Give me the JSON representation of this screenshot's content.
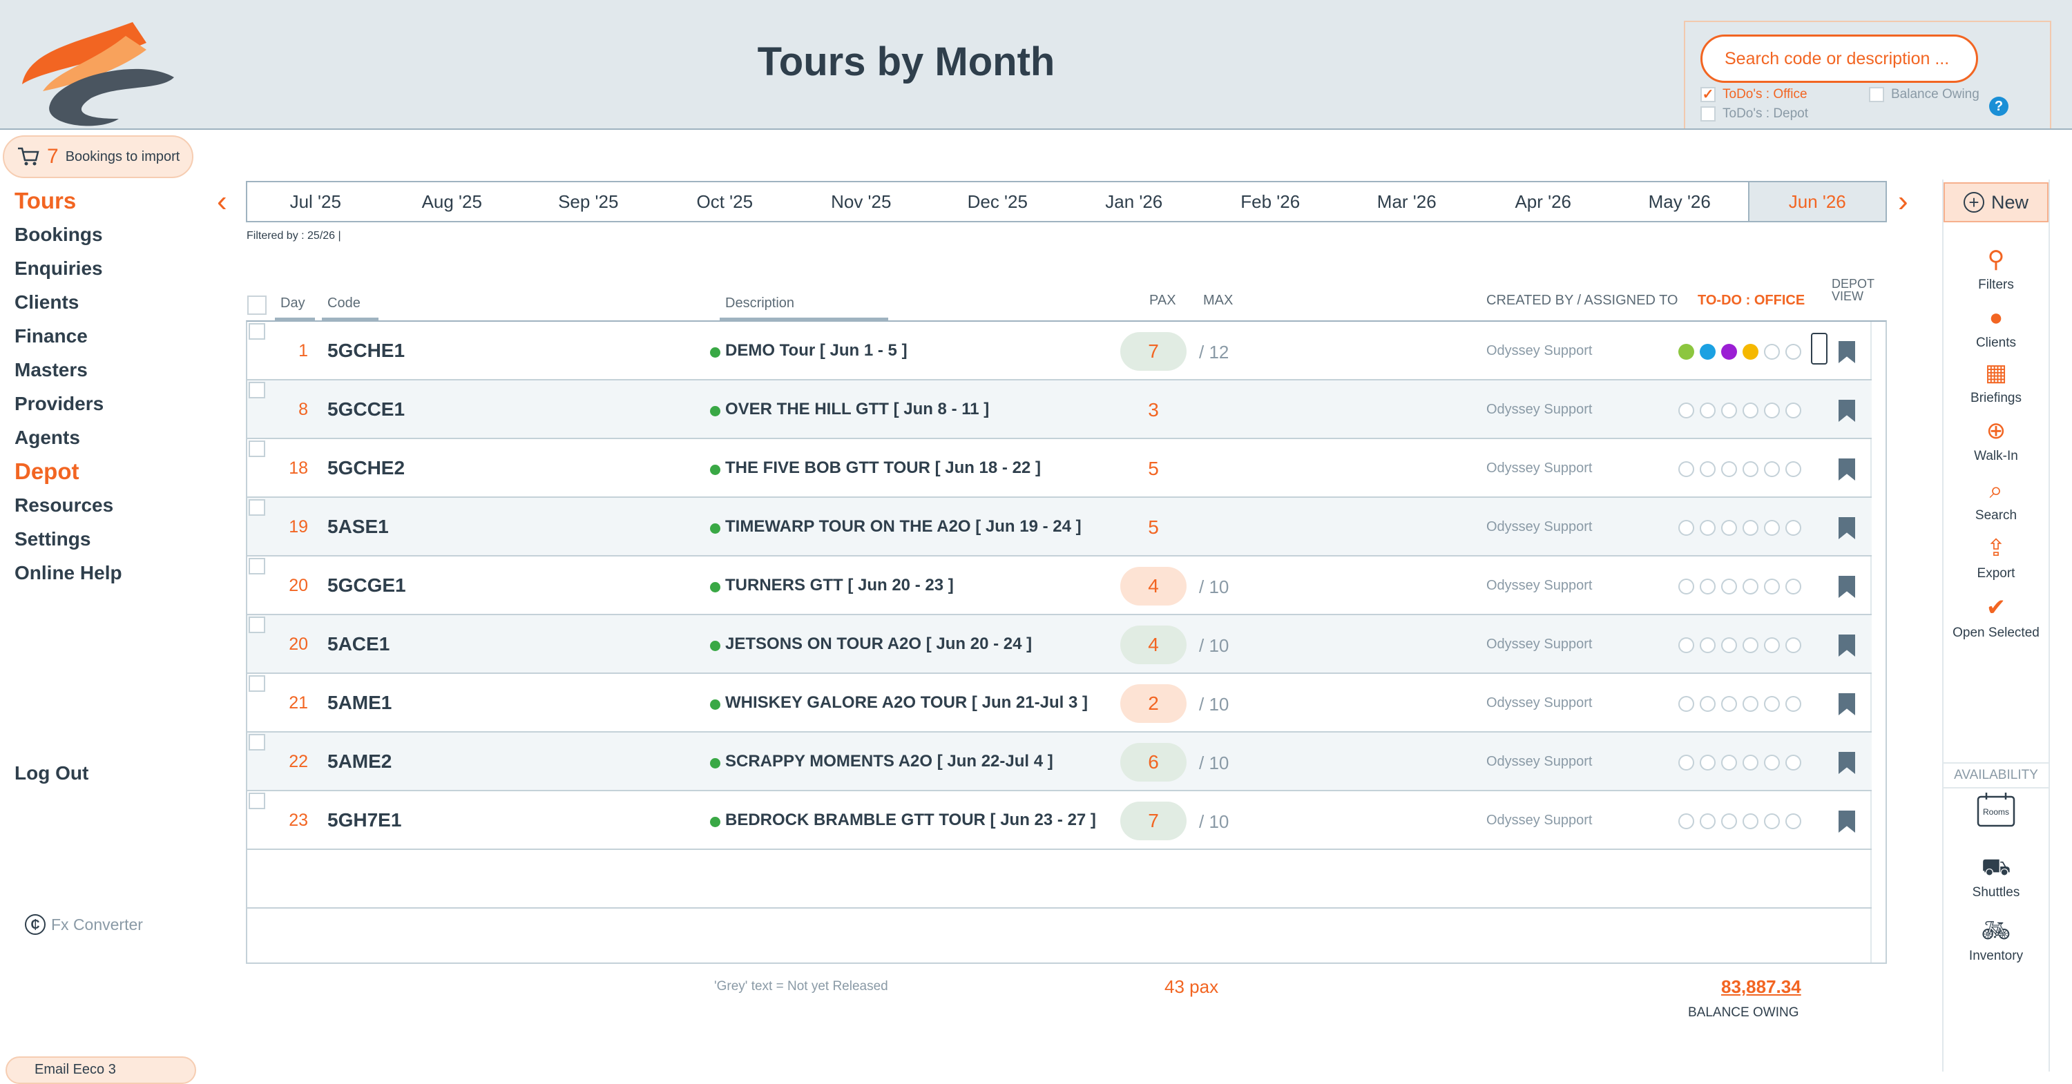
{
  "header": {
    "title": "Tours by Month",
    "search": {
      "placeholder": "Search code or description ...",
      "todo_office": "ToDo's : Office",
      "todo_depot": "ToDo's : Depot",
      "balance_owing": "Balance Owing",
      "help": "?"
    }
  },
  "import": {
    "count": "7",
    "label": "Bookings to import"
  },
  "nav": {
    "items": [
      "Tours",
      "Bookings",
      "Enquiries",
      "Clients",
      "Finance",
      "Masters",
      "Providers",
      "Agents",
      "Depot",
      "Resources",
      "Settings",
      "Online Help"
    ],
    "logout": "Log Out",
    "fx_converter": "Fx Converter",
    "email_label": "Email Eeco 3"
  },
  "months": [
    "Jul '25",
    "Aug '25",
    "Sep '25",
    "Oct '25",
    "Nov '25",
    "Dec '25",
    "Jan '26",
    "Feb '26",
    "Mar '26",
    "Apr '26",
    "May '26",
    "Jun '26"
  ],
  "filter_text": "Filtered by : 25/26 |",
  "columns": {
    "day": "Day",
    "code": "Code",
    "description": "Description",
    "pax": "PAX",
    "max": "MAX",
    "created": "CREATED BY / ASSIGNED TO",
    "todo": "TO-DO : OFFICE",
    "depot": "DEPOT VIEW"
  },
  "rows": [
    {
      "day": "1",
      "code": "5GCHE1",
      "description": "DEMO Tour  [ Jun 1 - 5 ]",
      "pax": "7",
      "max": "/ 12",
      "assigned": "Odyssey Support"
    },
    {
      "day": "8",
      "code": "5GCCE1",
      "description": "OVER THE HILL GTT  [ Jun 8 - 11 ]",
      "pax": "3",
      "max": "",
      "assigned": "Odyssey Support"
    },
    {
      "day": "18",
      "code": "5GCHE2",
      "description": "THE FIVE BOB GTT TOUR  [ Jun 18 - 22 ]",
      "pax": "5",
      "max": "",
      "assigned": "Odyssey Support"
    },
    {
      "day": "19",
      "code": "5ASE1",
      "description": "TIMEWARP TOUR ON THE A2O  [ Jun 19 - 24 ]",
      "pax": "5",
      "max": "",
      "assigned": "Odyssey Support"
    },
    {
      "day": "20",
      "code": "5GCGE1",
      "description": "TURNERS GTT  [ Jun 20 - 23 ]",
      "pax": "4",
      "max": "/ 10",
      "assigned": "Odyssey Support"
    },
    {
      "day": "20",
      "code": "5ACE1",
      "description": "JETSONS ON TOUR A2O  [ Jun 20 - 24 ]",
      "pax": "4",
      "max": "/ 10",
      "assigned": "Odyssey Support"
    },
    {
      "day": "21",
      "code": "5AME1",
      "description": "WHISKEY GALORE A2O TOUR  [ Jun 21-Jul 3 ]",
      "pax": "2",
      "max": "/ 10",
      "assigned": "Odyssey Support"
    },
    {
      "day": "22",
      "code": "5AME2",
      "description": "SCRAPPY MOMENTS A2O  [ Jun 22-Jul 4 ]",
      "pax": "6",
      "max": "/ 10",
      "assigned": "Odyssey Support"
    },
    {
      "day": "23",
      "code": "5GH7E1",
      "description": "BEDROCK BRAMBLE GTT TOUR  [ Jun 23 - 27 ]",
      "pax": "7",
      "max": "/ 10",
      "assigned": "Odyssey Support"
    }
  ],
  "todo_colors": [
    "#8cc63f",
    "#1ba1e2",
    "#9b1fd4",
    "#f5b800"
  ],
  "footer": {
    "note": "'Grey' text = Not yet Released",
    "pax_total": "43 pax",
    "balance": "83,887.34",
    "balance_label": "BALANCE OWING"
  },
  "rightbar": {
    "new": "New",
    "tools": [
      "Filters",
      "Clients",
      "Briefings",
      "Walk-In",
      "Search",
      "Export",
      "Open Selected"
    ],
    "availability": "AVAILABILITY",
    "avail_tools": [
      "Rooms",
      "Shuttles",
      "Inventory"
    ]
  },
  "colors": {
    "accent": "#f26522",
    "text": "#2f3f4c",
    "header_bg": "#e1e8ec",
    "row_alt": "#f2f6f8"
  }
}
